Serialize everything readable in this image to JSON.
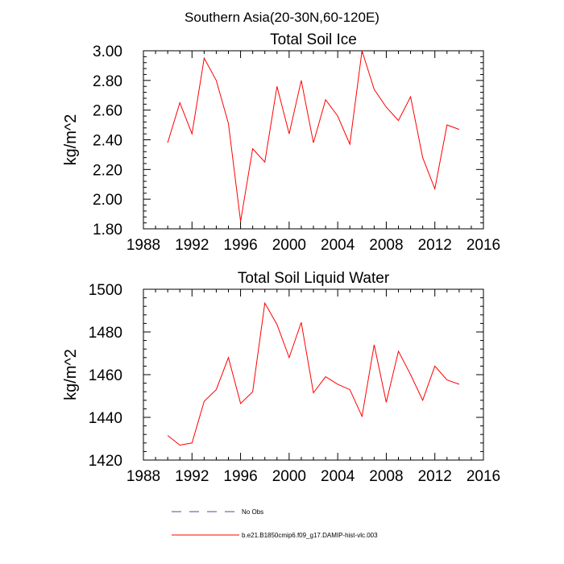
{
  "figure_title": "Southern Asia(20-30N,60-120E)",
  "chart_data": [
    {
      "type": "line",
      "title": "Total Soil Ice",
      "xlabel": "",
      "ylabel": "kg/m^2",
      "xlim": [
        1988,
        2016
      ],
      "ylim": [
        1.8,
        3.0
      ],
      "xticks": [
        1988,
        1992,
        1996,
        2000,
        2004,
        2008,
        2012,
        2016
      ],
      "xtick_labels": [
        "1988",
        "1992",
        "1996",
        "2000",
        "2004",
        "2008",
        "2012",
        "2016"
      ],
      "yticks": [
        1.8,
        2.0,
        2.2,
        2.4,
        2.6,
        2.8,
        3.0
      ],
      "ytick_labels": [
        "1.80",
        "2.00",
        "2.20",
        "2.40",
        "2.60",
        "2.80",
        "3.00"
      ],
      "series": [
        {
          "name": "b.e21.B1850cmip6.f09_g17.DAMIP-hist-vlc.003",
          "color": "#ff0000",
          "x": [
            1990,
            1991,
            1992,
            1993,
            1994,
            1995,
            1996,
            1997,
            1998,
            1999,
            2000,
            2001,
            2002,
            2003,
            2004,
            2005,
            2006,
            2007,
            2008,
            2009,
            2010,
            2011,
            2012,
            2013,
            2014
          ],
          "values": [
            2.38,
            2.65,
            2.44,
            2.95,
            2.8,
            2.51,
            1.85,
            2.34,
            2.25,
            2.76,
            2.44,
            2.8,
            2.38,
            2.67,
            2.56,
            2.37,
            3.0,
            2.74,
            2.62,
            2.53,
            2.69,
            2.28,
            2.07,
            2.5,
            2.47
          ]
        }
      ]
    },
    {
      "type": "line",
      "title": "Total Soil Liquid Water",
      "xlabel": "",
      "ylabel": "kg/m^2",
      "xlim": [
        1988,
        2016
      ],
      "ylim": [
        1420,
        1500
      ],
      "xticks": [
        1988,
        1992,
        1996,
        2000,
        2004,
        2008,
        2012,
        2016
      ],
      "xtick_labels": [
        "1988",
        "1992",
        "1996",
        "2000",
        "2004",
        "2008",
        "2012",
        "2016"
      ],
      "yticks": [
        1420,
        1440,
        1460,
        1480,
        1500
      ],
      "ytick_labels": [
        "1420",
        "1440",
        "1460",
        "1480",
        "1500"
      ],
      "series": [
        {
          "name": "b.e21.B1850cmip6.f09_g17.DAMIP-hist-vlc.003",
          "color": "#ff0000",
          "x": [
            1990,
            1991,
            1992,
            1993,
            1994,
            1995,
            1996,
            1997,
            1998,
            1999,
            2000,
            2001,
            2002,
            2003,
            2004,
            2005,
            2006,
            2007,
            2008,
            2009,
            2010,
            2011,
            2012,
            2013,
            2014
          ],
          "values": [
            1431.5,
            1427,
            1428,
            1447.5,
            1453,
            1468,
            1446.5,
            1452,
            1493.5,
            1483.5,
            1468,
            1484.5,
            1451.5,
            1459,
            1455.5,
            1453,
            1440.5,
            1474,
            1447,
            1471,
            1460,
            1448,
            1464,
            1457.5,
            1455.5
          ]
        }
      ]
    }
  ],
  "legend": [
    {
      "label": "No Obs",
      "color": "#4a4aa8",
      "style": "dashed"
    },
    {
      "label": "b.e21.B1850cmip6.f09_g17.DAMIP-hist-vlc.003",
      "color": "#ff0000",
      "style": "solid"
    }
  ]
}
